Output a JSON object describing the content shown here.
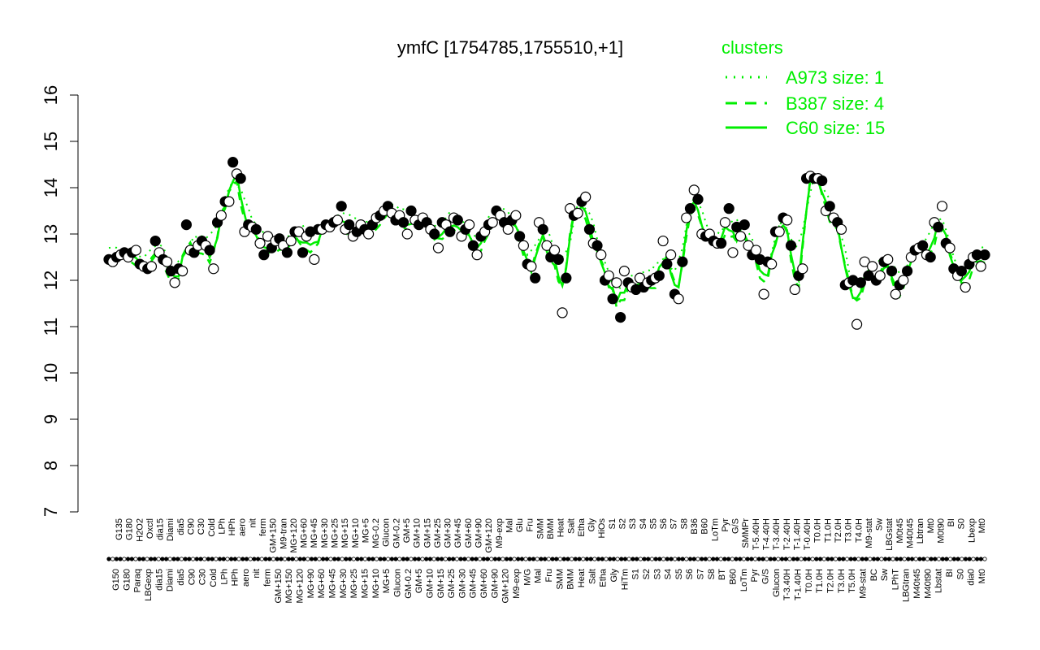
{
  "chart_data": {
    "type": "line",
    "title": "ymfC [1754785,1755510,+1]",
    "xlabel": "",
    "ylabel": "",
    "ylim": [
      7,
      16
    ],
    "yticks": [
      7,
      8,
      9,
      10,
      11,
      12,
      13,
      14,
      15,
      16
    ],
    "tick_labels_top": [
      "G135",
      "G180",
      "H2O2",
      "Oxctl",
      "dia15",
      "Diami",
      "dia5",
      "C90",
      "C30",
      "Cold",
      "LPh",
      "HPh",
      "aero",
      "nit",
      "ferm",
      "GM+150",
      "M9-tran",
      "MG+120",
      "MG+60",
      "MG+45",
      "MG+30",
      "MG+25",
      "MG+15",
      "MG+10",
      "MG+5",
      "MG-0.2",
      "Glucon",
      "GM-0.2",
      "GM+5",
      "GM+10",
      "GM+15",
      "GM+25",
      "GM+30",
      "GM+45",
      "GM+60",
      "GM+90",
      "GM+120",
      "M9-exp",
      "Mal",
      "Glu",
      "Fru",
      "SMM",
      "BMM",
      "Heat",
      "Salt",
      "Etha",
      "Gly",
      "HiOs",
      "S1",
      "S2",
      "S3",
      "S4",
      "S5",
      "S6",
      "S7",
      "S8",
      "B36",
      "B60",
      "LoTm",
      "Pyr",
      "G/S",
      "SMMPr",
      "T-5.40H",
      "T-4.40H",
      "T-3.40H",
      "T-2.40H",
      "T-1.40H",
      "T-0.40H",
      "T0.0H",
      "T1.0H",
      "T2.0H",
      "T3.0H",
      "T4.0H",
      "M9-stat",
      "Sw",
      "LBGstat",
      "M0t45",
      "M40t45",
      "Lbtran",
      "Mt0",
      "M0t90",
      "BI",
      "S0",
      "Lbexp",
      "Mt0"
    ],
    "tick_labels_bottom": [
      "G150",
      "G180",
      "Paraq",
      "LBGexp",
      "dia15",
      "Diami",
      "dia5",
      "C90",
      "C30",
      "Cold",
      "LPh",
      "HPh",
      "aero",
      "nit",
      "ferm",
      "GM+150",
      "MG+150",
      "MG+120",
      "MG+90",
      "MG+60",
      "MG+45",
      "MG+30",
      "MG+25",
      "MG+15",
      "MG+10",
      "MG+5",
      "Glucon",
      "GM-0.2",
      "GM+5",
      "GM+10",
      "GM+15",
      "GM+25",
      "GM+30",
      "GM+45",
      "GM+60",
      "GM+90",
      "GM+120",
      "M9-exp",
      "M/G",
      "Mal",
      "Fru",
      "SMM",
      "BMM",
      "Heat",
      "Salt",
      "Etha",
      "Gly",
      "HiTm",
      "S1",
      "S2",
      "S3",
      "S4",
      "S5",
      "S6",
      "S7",
      "S8",
      "BT",
      "B60",
      "LoTm",
      "Pyr",
      "G/S",
      "Glucon",
      "T-3.40H",
      "T-1.40H",
      "T0.0H",
      "T1.0H",
      "T2.0H",
      "T3.0H",
      "T5.0H",
      "M9-stat",
      "BC",
      "Sw",
      "LPhT",
      "LBGtran",
      "M40t45",
      "M40t90",
      "Lbstat",
      "BI",
      "S0",
      "dia0",
      "Mt0"
    ],
    "legend": {
      "title": "clusters",
      "placement": "top-right",
      "entries": [
        {
          "label": "A973 size: 1",
          "style": "dotted"
        },
        {
          "label": "B387 size: 4",
          "style": "dashed"
        },
        {
          "label": "C60 size: 15",
          "style": "solid"
        }
      ]
    },
    "colors": {
      "line": "#00ee00",
      "text": "#000000",
      "legend": "#00ee00"
    },
    "series": [
      {
        "values": [
          12.45,
          12.4,
          12.5,
          12.55,
          12.6,
          12.5,
          12.6,
          12.65,
          12.35,
          12.3,
          12.25,
          12.3,
          12.85,
          12.6,
          12.45,
          12.4,
          12.2,
          11.95,
          12.25,
          12.2,
          13.2,
          12.65,
          12.6,
          12.75,
          12.85,
          12.75,
          12.65,
          12.25,
          13.25,
          13.4,
          13.7,
          13.7,
          14.55,
          14.3,
          14.2,
          13.05,
          13.2,
          13.15,
          13.1,
          12.8,
          12.55,
          12.95,
          12.7,
          12.85,
          12.9,
          12.75,
          12.6,
          12.85,
          13.05,
          13.05,
          12.6,
          12.95,
          13.05,
          12.45,
          13.1,
          13.1,
          13.2,
          13.15,
          13.25,
          13.3,
          13.6,
          13.1,
          13.2,
          12.95,
          13.05,
          13.2,
          13.1,
          13.0,
          13.2,
          13.35,
          13.4,
          13.5,
          13.6,
          13.45,
          13.3,
          13.4,
          13.25,
          13.0,
          13.5,
          13.3,
          13.2,
          13.35,
          13.25,
          13.1,
          13.0,
          12.7,
          13.25,
          13.2,
          13.05,
          13.35,
          13.3,
          12.95,
          13.1,
          13.2,
          12.75,
          12.55,
          12.95,
          13.05,
          13.2,
          13.25,
          13.5,
          13.4,
          13.25,
          13.1,
          13.3,
          13.4,
          12.95,
          12.75,
          12.35,
          12.3,
          12.05,
          13.25,
          13.1,
          12.75,
          12.5,
          12.65,
          12.45,
          11.3,
          12.05,
          13.55,
          13.4,
          13.45,
          13.7,
          13.8,
          13.1,
          12.8,
          12.75,
          12.55,
          12.0,
          12.1,
          11.6,
          11.95,
          11.2,
          12.2,
          11.95,
          11.85,
          11.8,
          12.05,
          11.85,
          11.95,
          12.0,
          12.05,
          12.1,
          12.85,
          12.35,
          12.55,
          11.7,
          11.6,
          12.4,
          13.35,
          13.55,
          13.95,
          13.75,
          13.0,
          12.95,
          13.0,
          12.85,
          12.8,
          12.8,
          13.25,
          13.55,
          12.6,
          13.15,
          12.95,
          13.2,
          12.75,
          12.55,
          12.65,
          12.45,
          11.7,
          12.4,
          12.35,
          13.05,
          13.05,
          13.35,
          13.3,
          12.75,
          11.8,
          12.1,
          12.25,
          14.2,
          14.25,
          14.2,
          14.2,
          14.15,
          13.5,
          13.6,
          13.35,
          13.25,
          13.1,
          11.9,
          11.95,
          12.0,
          11.05,
          11.95,
          12.4,
          12.1,
          12.3,
          12.0,
          12.1,
          12.4,
          12.45,
          12.2,
          11.7,
          11.9,
          12.0,
          12.2,
          12.5,
          12.65,
          12.7,
          12.75,
          12.55,
          12.5,
          13.25,
          13.15,
          13.6,
          12.8,
          12.7,
          12.25,
          12.1,
          12.2,
          11.85,
          12.35,
          12.5,
          12.55,
          12.3,
          12.55
        ]
      }
    ]
  }
}
